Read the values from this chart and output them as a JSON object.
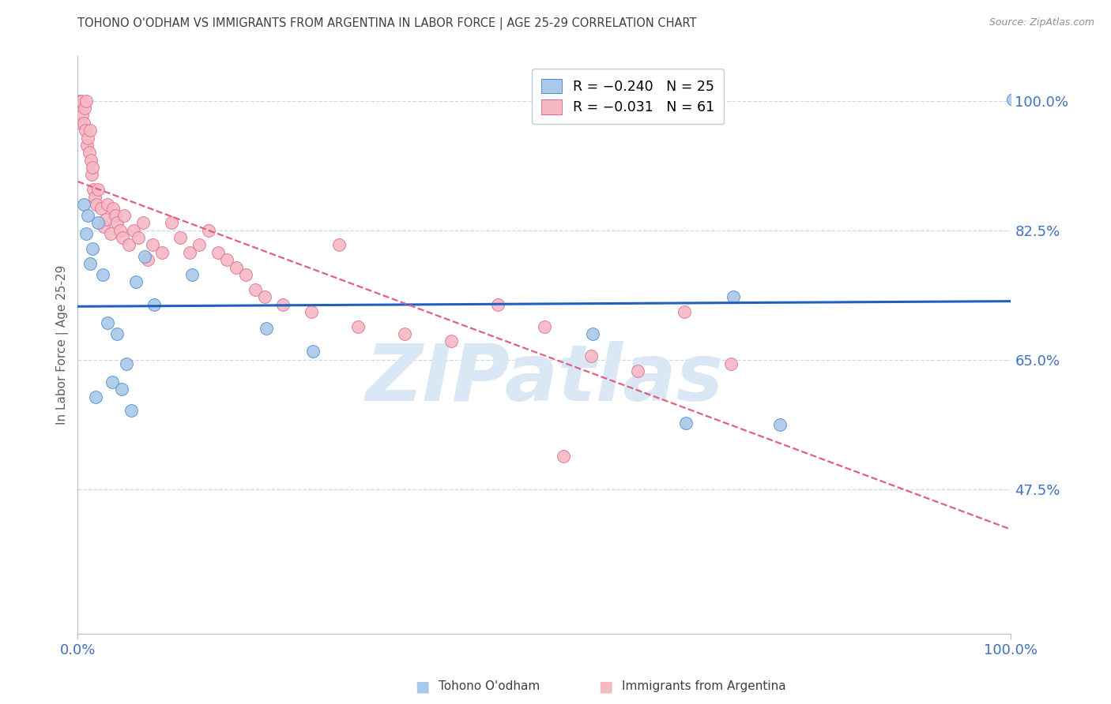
{
  "title": "TOHONO O'ODHAM VS IMMIGRANTS FROM ARGENTINA IN LABOR FORCE | AGE 25-29 CORRELATION CHART",
  "source": "Source: ZipAtlas.com",
  "ylabel": "In Labor Force | Age 25-29",
  "xlim": [
    0.0,
    1.0
  ],
  "ylim": [
    0.28,
    1.06
  ],
  "yticks": [
    0.475,
    0.65,
    0.825,
    1.0
  ],
  "ytick_labels": [
    "47.5%",
    "65.0%",
    "82.5%",
    "100.0%"
  ],
  "blue_scatter_x": [
    0.006,
    0.009,
    0.011,
    0.013,
    0.016,
    0.019,
    0.022,
    0.027,
    0.032,
    0.037,
    0.042,
    0.047,
    0.052,
    0.057,
    0.062,
    0.072,
    0.082,
    0.122,
    0.202,
    0.252,
    0.552,
    0.652,
    0.702,
    0.752,
    1.002
  ],
  "blue_scatter_y": [
    0.86,
    0.82,
    0.845,
    0.78,
    0.8,
    0.6,
    0.835,
    0.765,
    0.7,
    0.62,
    0.685,
    0.61,
    0.645,
    0.582,
    0.755,
    0.79,
    0.725,
    0.765,
    0.692,
    0.662,
    0.685,
    0.565,
    0.735,
    0.562,
    1.002
  ],
  "pink_scatter_x": [
    0.002,
    0.003,
    0.004,
    0.005,
    0.006,
    0.007,
    0.008,
    0.009,
    0.01,
    0.011,
    0.012,
    0.013,
    0.014,
    0.015,
    0.016,
    0.017,
    0.018,
    0.02,
    0.022,
    0.025,
    0.028,
    0.03,
    0.032,
    0.035,
    0.038,
    0.04,
    0.042,
    0.045,
    0.048,
    0.05,
    0.055,
    0.06,
    0.065,
    0.07,
    0.075,
    0.08,
    0.09,
    0.1,
    0.11,
    0.12,
    0.13,
    0.14,
    0.15,
    0.16,
    0.17,
    0.18,
    0.19,
    0.2,
    0.22,
    0.25,
    0.28,
    0.3,
    0.35,
    0.4,
    0.45,
    0.5,
    0.55,
    0.6,
    0.65,
    0.7,
    0.52
  ],
  "pink_scatter_y": [
    1.0,
    0.97,
    1.0,
    0.98,
    0.97,
    0.99,
    0.96,
    1.0,
    0.94,
    0.95,
    0.93,
    0.96,
    0.92,
    0.9,
    0.91,
    0.88,
    0.87,
    0.86,
    0.88,
    0.855,
    0.83,
    0.84,
    0.86,
    0.82,
    0.855,
    0.845,
    0.835,
    0.825,
    0.815,
    0.845,
    0.805,
    0.825,
    0.815,
    0.835,
    0.785,
    0.805,
    0.795,
    0.835,
    0.815,
    0.795,
    0.805,
    0.825,
    0.795,
    0.785,
    0.775,
    0.765,
    0.745,
    0.735,
    0.725,
    0.715,
    0.805,
    0.695,
    0.685,
    0.675,
    0.725,
    0.695,
    0.655,
    0.635,
    0.715,
    0.645,
    0.52
  ],
  "blue_color": "#aac8e8",
  "pink_color": "#f5b8c4",
  "blue_edge_color": "#5090d0",
  "pink_edge_color": "#e07090",
  "blue_line_color": "#2060c0",
  "pink_line_color": "#e06080",
  "watermark": "ZIPatlas",
  "watermark_color": "#dae8f5",
  "grid_color": "#c8d8e8",
  "background_color": "#ffffff",
  "title_color": "#404040",
  "axis_label_color": "#606060",
  "right_label_color": "#4070c0",
  "bottom_label_color": "#4070c0",
  "source_color": "#909090",
  "bottom_legend_blue": "Tohono O'odham",
  "bottom_legend_pink": "Immigrants from Argentina"
}
